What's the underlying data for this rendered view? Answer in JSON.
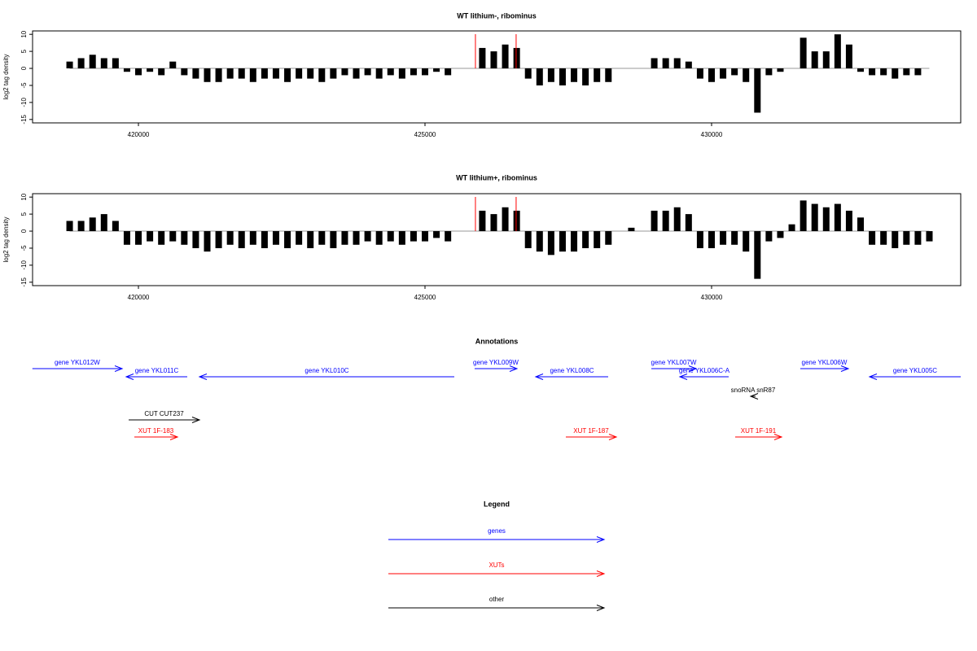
{
  "chart_data": [
    {
      "type": "bar",
      "title": "WT lithium-, ribominus",
      "ylabel": "log2 tag density",
      "color": "#000000",
      "xlim": [
        418153,
        434347
      ],
      "xticks": [
        420000,
        425000,
        430000
      ],
      "ylim": [
        -16,
        11
      ],
      "yticks": [
        -15,
        -10,
        -5,
        0,
        5,
        10
      ],
      "markers": [
        425880,
        426590
      ],
      "marker_color": "#ff0000",
      "x": [
        418800,
        419000,
        419200,
        419400,
        419600,
        419800,
        420000,
        420200,
        420400,
        420600,
        420800,
        421000,
        421200,
        421400,
        421600,
        421800,
        422000,
        422200,
        422400,
        422600,
        422800,
        423000,
        423200,
        423400,
        423600,
        423800,
        424000,
        424200,
        424400,
        424600,
        424800,
        425000,
        425200,
        425400,
        425600,
        425800,
        426000,
        426200,
        426400,
        426600,
        426800,
        427000,
        427200,
        427400,
        427600,
        427800,
        428000,
        428200,
        428400,
        428600,
        428800,
        429000,
        429200,
        429400,
        429600,
        429800,
        430000,
        430200,
        430400,
        430600,
        430800,
        431000,
        431200,
        431400,
        431600,
        431800,
        432000,
        432200,
        432400,
        432600,
        432800,
        433000,
        433200,
        433400,
        433600,
        433800
      ],
      "values": [
        2,
        3,
        4,
        3,
        3,
        -1,
        -2,
        -1,
        -2,
        2,
        -2,
        -3,
        -4,
        -4,
        -3,
        -3,
        -4,
        -3,
        -3,
        -4,
        -3,
        -3,
        -4,
        -3,
        -2,
        -3,
        -2,
        -3,
        -2,
        -3,
        -2,
        -2,
        -1,
        -2,
        0,
        0,
        6,
        5,
        7,
        6,
        -3,
        -5,
        -4,
        -5,
        -4,
        -5,
        -4,
        -4,
        0,
        0,
        0,
        3,
        3,
        3,
        2,
        -3,
        -4,
        -3,
        -2,
        -4,
        -13,
        -2,
        -1,
        0,
        9,
        5,
        5,
        10,
        7,
        -1,
        -2,
        -2,
        -3,
        -2,
        -2,
        0
      ]
    },
    {
      "type": "bar",
      "title": "WT lithium+, ribominus",
      "ylabel": "log2 tag density",
      "color": "#000000",
      "xlim": [
        418153,
        434347
      ],
      "xticks": [
        420000,
        425000,
        430000
      ],
      "ylim": [
        -16,
        11
      ],
      "yticks": [
        -15,
        -10,
        -5,
        0,
        5,
        10
      ],
      "markers": [
        425880,
        426590
      ],
      "marker_color": "#ff0000",
      "x": [
        418800,
        419000,
        419200,
        419400,
        419600,
        419800,
        420000,
        420200,
        420400,
        420600,
        420800,
        421000,
        421200,
        421400,
        421600,
        421800,
        422000,
        422200,
        422400,
        422600,
        422800,
        423000,
        423200,
        423400,
        423600,
        423800,
        424000,
        424200,
        424400,
        424600,
        424800,
        425000,
        425200,
        425400,
        425600,
        425800,
        426000,
        426200,
        426400,
        426600,
        426800,
        427000,
        427200,
        427400,
        427600,
        427800,
        428000,
        428200,
        428400,
        428600,
        428800,
        429000,
        429200,
        429400,
        429600,
        429800,
        430000,
        430200,
        430400,
        430600,
        430800,
        431000,
        431200,
        431400,
        431600,
        431800,
        432000,
        432200,
        432400,
        432600,
        432800,
        433000,
        433200,
        433400,
        433600,
        433800
      ],
      "values": [
        3,
        3,
        4,
        5,
        3,
        -4,
        -4,
        -3,
        -4,
        -3,
        -4,
        -5,
        -6,
        -5,
        -4,
        -5,
        -4,
        -5,
        -4,
        -5,
        -4,
        -5,
        -4,
        -5,
        -4,
        -4,
        -3,
        -4,
        -3,
        -4,
        -3,
        -3,
        -2,
        -3,
        0,
        0,
        6,
        5,
        7,
        6,
        -5,
        -6,
        -7,
        -6,
        -6,
        -5,
        -5,
        -4,
        0,
        1,
        0,
        6,
        6,
        7,
        5,
        -5,
        -5,
        -4,
        -4,
        -6,
        -14,
        -3,
        -2,
        2,
        9,
        8,
        7,
        8,
        6,
        4,
        -4,
        -4,
        -5,
        -4,
        -4,
        -3
      ]
    }
  ],
  "annotations": {
    "title": "Annotations",
    "features": [
      {
        "name": "gene YKL012W",
        "start": 418150,
        "end": 419716,
        "strand": "+",
        "color": "#0000ff"
      },
      {
        "name": "gene YKL011C",
        "start": 419787,
        "end": 420852,
        "strand": "-",
        "color": "#0000ff"
      },
      {
        "name": "gene YKL010C",
        "start": 421065,
        "end": 425511,
        "strand": "-",
        "color": "#0000ff"
      },
      {
        "name": "gene YKL009W",
        "start": 425866,
        "end": 426605,
        "strand": "+",
        "color": "#0000ff"
      },
      {
        "name": "gene YKL008C",
        "start": 426932,
        "end": 428196,
        "strand": "-",
        "color": "#0000ff"
      },
      {
        "name": "gene YKL007W",
        "start": 428949,
        "end": 429730,
        "strand": "+",
        "color": "#0000ff"
      },
      {
        "name": "gene YKL006C-A",
        "start": 429446,
        "end": 430298,
        "strand": "-",
        "color": "#0000ff"
      },
      {
        "name": "snoRNA snR87",
        "start": 430682,
        "end": 430767,
        "strand": "-",
        "color": "#000000"
      },
      {
        "name": "gene YKL006W",
        "start": 431548,
        "end": 432386,
        "strand": "+",
        "color": "#0000ff"
      },
      {
        "name": "gene YKL005C",
        "start": 432756,
        "end": 434347,
        "strand": "-",
        "color": "#0000ff"
      },
      {
        "name": "CUT CUT237",
        "start": 419830,
        "end": 421065,
        "strand": "+",
        "color": "#000000"
      },
      {
        "name": "XUT 1F-183",
        "start": 419929,
        "end": 420682,
        "strand": "+",
        "color": "#ff0000"
      },
      {
        "name": "XUT 1F-187",
        "start": 427457,
        "end": 428338,
        "strand": "+",
        "color": "#ff0000"
      },
      {
        "name": "XUT 1F-191",
        "start": 430412,
        "end": 431222,
        "strand": "+",
        "color": "#ff0000"
      }
    ]
  },
  "legend": {
    "title": "Legend",
    "items": [
      {
        "label": "genes",
        "color": "#0000ff"
      },
      {
        "label": "XUTs",
        "color": "#ff0000"
      },
      {
        "label": "other",
        "color": "#000000"
      }
    ]
  }
}
